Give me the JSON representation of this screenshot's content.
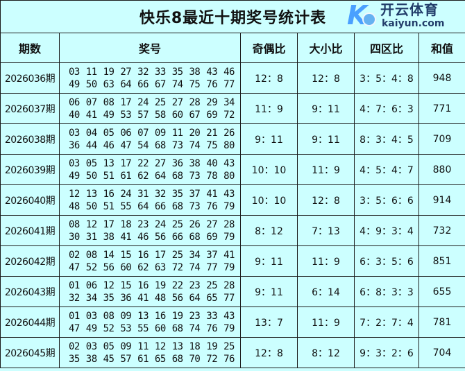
{
  "title": "快乐8最近十期奖号统计表",
  "headers": [
    "期数",
    "奖号",
    "奇偶比",
    "大小比",
    "四区比",
    "和值"
  ],
  "rows": [
    {
      "issue": "2026036期",
      "line1": "03 11 19 27 32 33 35 38 43 46",
      "line2": "49 50 63 64 66 67 74 75 76 77",
      "odd_even": "12：8",
      "big_small": "12：8",
      "zones": "3：5：4：8",
      "sum": "948"
    },
    {
      "issue": "2026037期",
      "line1": "06 07 08 17 24 25 27 28 29 34",
      "line2": "40 41 49 53 57 58 60 67 69 72",
      "odd_even": "11：9",
      "big_small": "9：11",
      "zones": "4：7：6：3",
      "sum": "771"
    },
    {
      "issue": "2026038期",
      "line1": "03 04 05 06 07 09 11 20 21 26",
      "line2": "36 44 46 47 54 68 73 74 75 80",
      "odd_even": "9：11",
      "big_small": "9：11",
      "zones": "8：3：4：5",
      "sum": "709"
    },
    {
      "issue": "2026039期",
      "line1": "03 05 13 17 22 27 36 38 40 43",
      "line2": "49 50 51 61 62 64 68 73 78 80",
      "odd_even": "10：10",
      "big_small": "11：9",
      "zones": "4：5：4：7",
      "sum": "880"
    },
    {
      "issue": "2026040期",
      "line1": "12 13 16 24 31 32 35 37 41 43",
      "line2": "48 50 51 55 64 66 68 73 76 79",
      "odd_even": "10：10",
      "big_small": "12：8",
      "zones": "3：5：6：6",
      "sum": "914"
    },
    {
      "issue": "2026041期",
      "line1": "08 12 17 18 23 24 25 26 27 28",
      "line2": "30 31 38 41 46 56 66 68 69 79",
      "odd_even": "8：12",
      "big_small": "7：13",
      "zones": "4：9：3：4",
      "sum": "732"
    },
    {
      "issue": "2026042期",
      "line1": "02 08 14 15 16 17 25 34 37 41",
      "line2": "47 52 56 60 62 63 72 74 77 79",
      "odd_even": "9：11",
      "big_small": "11：9",
      "zones": "6：3：5：6",
      "sum": "851"
    },
    {
      "issue": "2026043期",
      "line1": "01 06 12 15 16 19 22 23 25 28",
      "line2": "32 34 35 36 41 48 56 64 65 77",
      "odd_even": "9：11",
      "big_small": "6：14",
      "zones": "6：8：3：3",
      "sum": "655"
    },
    {
      "issue": "2026044期",
      "line1": "01 03 08 09 13 16 19 23 33 43",
      "line2": "47 49 52 53 55 60 68 74 76 79",
      "odd_even": "13：7",
      "big_small": "11：9",
      "zones": "7：2：7：4",
      "sum": "781"
    },
    {
      "issue": "2026045期",
      "line1": "02 03 05 09 11 12 13 18 19 25",
      "line2": "35 38 45 57 61 65 68 70 72 76",
      "odd_even": "12：8",
      "big_small": "8：12",
      "zones": "9：3：2：6",
      "sum": "704"
    }
  ],
  "watermark": {
    "brand_cn": "开云体育",
    "brand_en": "kaiyun.com",
    "color": "#3c96ff"
  },
  "colors": {
    "background": "#ccffff",
    "border": "#1a1a1a"
  }
}
